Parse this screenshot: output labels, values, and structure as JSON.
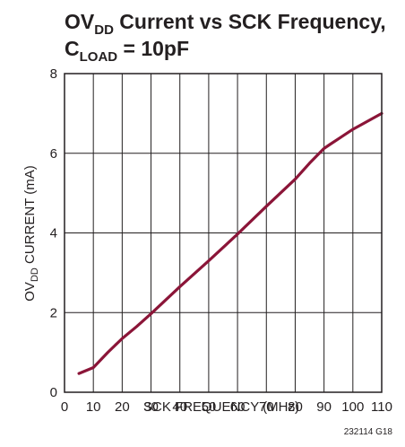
{
  "chart_data": {
    "type": "line",
    "title": {
      "line1": {
        "main": "OV",
        "sub": "DD",
        "rest": " Current vs SCK Frequency,"
      },
      "line2": {
        "main": "C",
        "sub": "LOAD",
        "rest": " = 10pF"
      }
    },
    "xlabel": "SCK FREQUENCY (MHz)",
    "ylabel": {
      "main": "OV",
      "sub": "DD",
      "rest": " CURRENT (mA)"
    },
    "xlim": [
      0,
      110
    ],
    "ylim": [
      0,
      8
    ],
    "x_ticks": [
      0,
      10,
      20,
      30,
      40,
      50,
      60,
      70,
      80,
      90,
      100,
      110
    ],
    "y_ticks": [
      0,
      2,
      4,
      6,
      8
    ],
    "grid": true,
    "series": [
      {
        "color": "#8b1538",
        "x": [
          5,
          10,
          15,
          20,
          25,
          30,
          40,
          50,
          60,
          70,
          80,
          85,
          90,
          92,
          100,
          110
        ],
        "y": [
          0.47,
          0.62,
          1.0,
          1.35,
          1.65,
          1.97,
          2.65,
          3.3,
          3.97,
          4.67,
          5.35,
          5.75,
          6.12,
          6.22,
          6.6,
          7.0
        ]
      }
    ],
    "figure_id": "232114 G18"
  }
}
